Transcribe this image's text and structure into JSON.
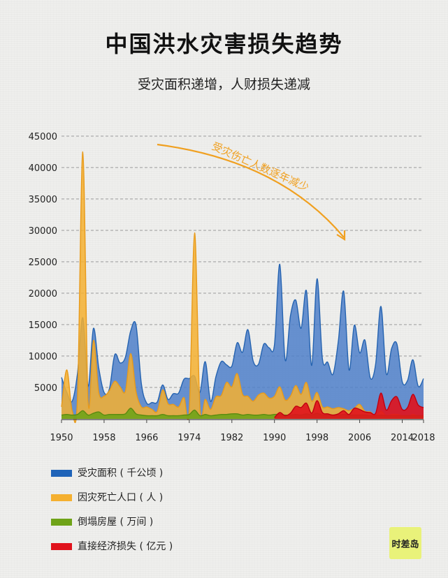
{
  "title": "中国洪水灾害损失趋势",
  "subtitle": "受灾面积递增，人财损失递减",
  "annotation": "受灾伤亡人数逐年减少",
  "logo": "时差岛",
  "colors": {
    "blue": "#4e7fc9",
    "blue_line": "#2563b0",
    "yellow": "#f5b030",
    "green": "#6fa318",
    "red": "#e0121c",
    "arrow": "#f0a020"
  },
  "chart_data": {
    "type": "area",
    "title": "中国洪水灾害损失趋势",
    "subtitle": "受灾面积递增，人财损失递减",
    "xlabel": "",
    "ylabel": "",
    "xlim": [
      1950,
      2018
    ],
    "ylim": [
      0,
      45000
    ],
    "yticks": [
      5000,
      10000,
      15000,
      20000,
      25000,
      30000,
      35000,
      40000,
      45000
    ],
    "xticks": [
      1950,
      1958,
      1966,
      1974,
      1982,
      1990,
      1998,
      2006,
      2014,
      2018
    ],
    "grid": true,
    "legend_position": "bottom",
    "series": [
      {
        "name": "受灾面积(千公顷)",
        "legend_label": "受灾面积 ( 千公顷 )",
        "color": "#4e7fc9",
        "x": [
          1950,
          1951,
          1952,
          1953,
          1954,
          1955,
          1956,
          1957,
          1958,
          1959,
          1960,
          1961,
          1962,
          1963,
          1964,
          1965,
          1966,
          1967,
          1968,
          1969,
          1970,
          1971,
          1972,
          1973,
          1974,
          1975,
          1976,
          1977,
          1978,
          1979,
          1980,
          1981,
          1982,
          1983,
          1984,
          1985,
          1986,
          1987,
          1988,
          1989,
          1990,
          1991,
          1992,
          1993,
          1994,
          1995,
          1996,
          1997,
          1998,
          1999,
          2000,
          2001,
          2002,
          2003,
          2004,
          2005,
          2006,
          2007,
          2008,
          2009,
          2010,
          2011,
          2012,
          2013,
          2014,
          2015,
          2016,
          2017,
          2018
        ],
        "values": [
          6600,
          4200,
          2800,
          7200,
          16100,
          5200,
          14400,
          8100,
          4200,
          4800,
          10200,
          8900,
          9800,
          14000,
          14900,
          5600,
          2500,
          2600,
          2700,
          5400,
          3100,
          4000,
          4100,
          6300,
          6400,
          6800,
          4200,
          9100,
          2800,
          6700,
          9100,
          8600,
          8400,
          12100,
          10600,
          14200,
          9200,
          8700,
          11900,
          11300,
          11800,
          24600,
          9400,
          16400,
          18900,
          14400,
          20400,
          8500,
          22300,
          9600,
          9000,
          7100,
          12400,
          20300,
          7800,
          14900,
          10500,
          12500,
          6500,
          8700,
          17900,
          7200,
          11200,
          11900,
          5900,
          6100,
          9400,
          5200,
          6400
        ]
      },
      {
        "name": "因灾死亡人口(人)",
        "legend_label": "因灾死亡人口 ( 人 )",
        "color": "#f5b030",
        "x": [
          1950,
          1951,
          1952,
          1953,
          1954,
          1955,
          1956,
          1957,
          1958,
          1959,
          1960,
          1961,
          1962,
          1963,
          1964,
          1965,
          1966,
          1967,
          1968,
          1969,
          1970,
          1971,
          1972,
          1973,
          1974,
          1975,
          1976,
          1977,
          1978,
          1979,
          1980,
          1981,
          1982,
          1983,
          1984,
          1985,
          1986,
          1987,
          1988,
          1989,
          1990,
          1991,
          1992,
          1993,
          1994,
          1995,
          1996,
          1997,
          1998,
          1999,
          2000,
          2001,
          2002,
          2003,
          2004,
          2005,
          2006,
          2007,
          2008,
          2009,
          2010,
          2011,
          2012,
          2013,
          2014,
          2015,
          2016,
          2017,
          2018
        ],
        "values": [
          1900,
          7800,
          1300,
          3300,
          42500,
          2700,
          12500,
          4200,
          3600,
          4500,
          6000,
          5100,
          4400,
          10400,
          4300,
          1900,
          1900,
          1500,
          1200,
          4600,
          2400,
          2300,
          1900,
          3400,
          1400,
          29600,
          1800,
          3100,
          1500,
          3500,
          3700,
          5800,
          5100,
          7200,
          3900,
          3600,
          2800,
          3800,
          4100,
          3300,
          3600,
          5100,
          3000,
          3600,
          5300,
          3900,
          5800,
          2800,
          4200,
          1900,
          1900,
          1600,
          1800,
          1600,
          1300,
          1700,
          2300,
          1200,
          1100,
          500,
          1200,
          500,
          700,
          700,
          500,
          300,
          700,
          400,
          200
        ]
      },
      {
        "name": "倒塌房屋(万间)",
        "legend_label": "倒塌房屋 ( 万间 )",
        "color": "#6fa318",
        "x": [
          1950,
          1951,
          1952,
          1953,
          1954,
          1955,
          1956,
          1957,
          1958,
          1959,
          1960,
          1961,
          1962,
          1963,
          1964,
          1965,
          1966,
          1967,
          1968,
          1969,
          1970,
          1971,
          1972,
          1973,
          1974,
          1975,
          1976,
          1977,
          1978,
          1979,
          1980,
          1981,
          1982,
          1983,
          1984,
          1985,
          1986,
          1987,
          1988,
          1989,
          1990,
          1991,
          1992,
          1993,
          1994,
          1995,
          1996,
          1997,
          1998,
          1999,
          2000,
          2001,
          2002,
          2003,
          2004,
          2005,
          2006,
          2007,
          2008,
          2009,
          2010,
          2011,
          2012,
          2013,
          2014,
          2015,
          2016,
          2017,
          2018
        ],
        "values": [
          600,
          700,
          600,
          700,
          1300,
          600,
          900,
          1100,
          600,
          700,
          700,
          700,
          800,
          1700,
          800,
          600,
          500,
          500,
          500,
          700,
          500,
          500,
          500,
          600,
          700,
          1400,
          500,
          700,
          500,
          600,
          700,
          700,
          800,
          800,
          600,
          700,
          600,
          600,
          700,
          600,
          700,
          700,
          600,
          600,
          700,
          600,
          800,
          600,
          900,
          600,
          600,
          600,
          600,
          700,
          600,
          600,
          600,
          600,
          500,
          500,
          600,
          500,
          500,
          500,
          500,
          500,
          500,
          500,
          500
        ]
      },
      {
        "name": "直接经济损失(亿元)",
        "legend_label": "直接经济损失 ( 亿元 )",
        "color": "#e0121c",
        "x": [
          1990,
          1991,
          1992,
          1993,
          1994,
          1995,
          1996,
          1997,
          1998,
          1999,
          2000,
          2001,
          2002,
          2003,
          2004,
          2005,
          2006,
          2007,
          2008,
          2009,
          2010,
          2011,
          2012,
          2013,
          2014,
          2015,
          2016,
          2017,
          2018
        ],
        "values": [
          200,
          1000,
          500,
          900,
          2000,
          1800,
          2500,
          900,
          2900,
          1000,
          800,
          600,
          800,
          1300,
          700,
          1700,
          1500,
          1100,
          1000,
          900,
          4100,
          1400,
          2900,
          3500,
          1500,
          1800,
          3900,
          2200,
          1800
        ]
      }
    ]
  }
}
